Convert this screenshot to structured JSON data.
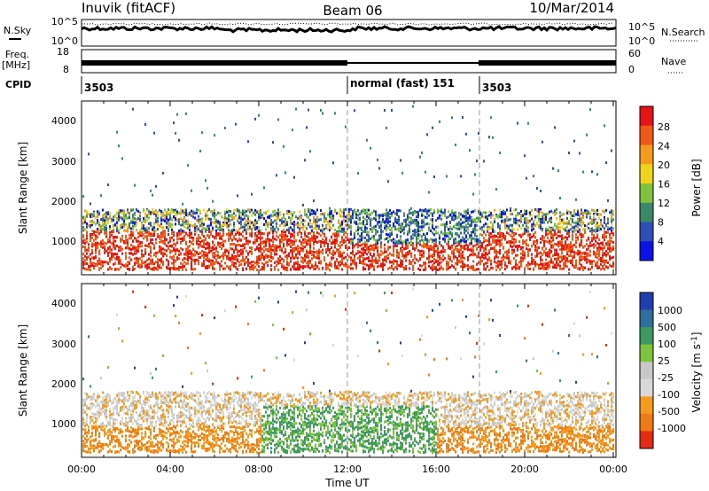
{
  "header": {
    "station": "Inuvik (fitACF)",
    "beam": "Beam 06",
    "date": "10/Mar/2014"
  },
  "top_panels": {
    "nsky_label": "N.Sky",
    "nsky_ticks": [
      "10^5",
      "10^0"
    ],
    "nsearch_label": "N.Search",
    "nsearch_ticks": [
      "10^5",
      "10^0"
    ],
    "freq_label": "Freq.",
    "freq_unit": "[MHz]",
    "freq_ticks": [
      "18",
      "8"
    ],
    "nave_label": "Nave",
    "nave_ticks": [
      "60",
      "0"
    ],
    "cpid_label": "CPID",
    "cpid_segments": [
      {
        "start_hour": 0,
        "label": "3503"
      },
      {
        "start_hour": 12,
        "label": "normal (fast) 151"
      },
      {
        "start_hour": 18,
        "label": "3503"
      }
    ]
  },
  "x_axis": {
    "label": "Time UT",
    "tick_labels": [
      "00:00",
      "04:00",
      "08:00",
      "12:00",
      "16:00",
      "20:00",
      "00:00"
    ]
  },
  "power_panel": {
    "ylabel": "Slant Range [km]",
    "y_ticks": [
      "1000",
      "2000",
      "3000",
      "4000"
    ],
    "colorbar_label": "Power [dB]",
    "colorbar_ticks": [
      "4",
      "8",
      "12",
      "16",
      "20",
      "24",
      "28"
    ]
  },
  "velocity_panel": {
    "ylabel": "Slant Range [km]",
    "y_ticks": [
      "1000",
      "2000",
      "3000",
      "4000"
    ],
    "colorbar_label": "Velocity [m s",
    "colorbar_label_sup": "-1",
    "colorbar_label_end": "]",
    "colorbar_ticks": [
      "1000",
      "500",
      "100",
      "25",
      "-25",
      "-100",
      "-500",
      "-1000"
    ]
  },
  "colors": {
    "power_scale": [
      "#0a14e6",
      "#2d4fb8",
      "#3a8a6a",
      "#7fc23c",
      "#f2d21a",
      "#f59a1c",
      "#f05a14",
      "#e61414"
    ],
    "velocity_scale": [
      "#1f3fb0",
      "#2f6e9e",
      "#3d9a5e",
      "#7cc43c",
      "#c8c8c8",
      "#d9d9d9",
      "#f59a1c",
      "#f07a14",
      "#e62a14"
    ]
  },
  "chart_data": [
    {
      "type": "heatmap",
      "title": "Power",
      "x_range_hours": [
        0,
        24
      ],
      "ylim": [
        200,
        4500
      ],
      "colorbar_range": [
        0,
        30
      ],
      "description_of_bands": "dense echoes 400-1800 km all day; sparse scatter up to 4500 km"
    },
    {
      "type": "heatmap",
      "title": "Velocity",
      "x_range_hours": [
        0,
        24
      ],
      "ylim": [
        200,
        4500
      ],
      "colorbar_range": [
        -1200,
        1200
      ]
    }
  ]
}
